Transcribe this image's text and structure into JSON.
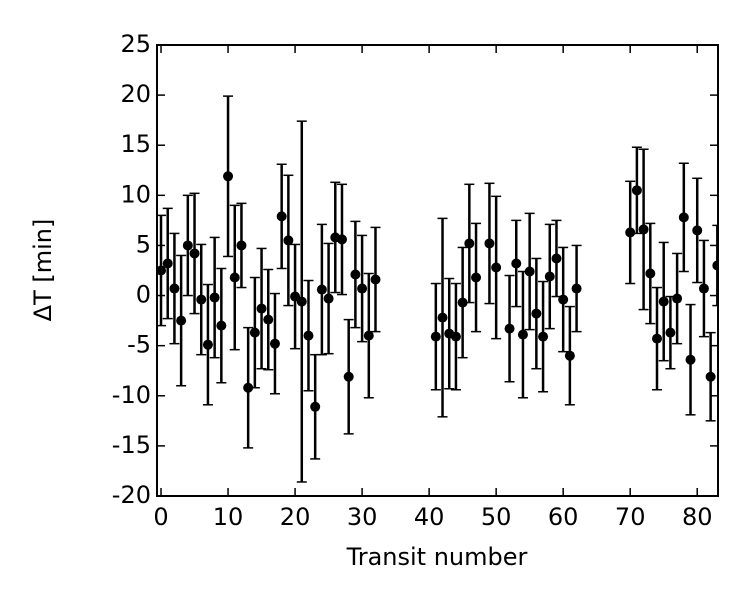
{
  "chart_data": {
    "type": "errorbar",
    "x_label": "Transit number",
    "y_label": "ΔT [min]",
    "x": [
      0,
      1,
      2,
      3,
      4,
      5,
      6,
      7,
      8,
      9,
      10,
      11,
      12,
      13,
      14,
      15,
      16,
      17,
      18,
      19,
      20,
      21,
      22,
      23,
      24,
      25,
      26,
      27,
      28,
      29,
      30,
      31,
      32,
      41,
      42,
      43,
      44,
      45,
      46,
      47,
      49,
      50,
      52,
      53,
      54,
      55,
      56,
      57,
      58,
      59,
      60,
      61,
      62,
      70,
      71,
      72,
      73,
      74,
      75,
      76,
      77,
      78,
      79,
      80,
      81,
      82,
      83
    ],
    "values": [
      2.5,
      3.2,
      0.7,
      -2.5,
      5.0,
      4.2,
      -0.4,
      -4.9,
      -0.2,
      -3.0,
      11.9,
      1.8,
      5.0,
      -9.2,
      -3.7,
      -1.3,
      -2.4,
      -4.8,
      7.9,
      5.5,
      -0.1,
      -0.6,
      -4.0,
      -11.1,
      0.6,
      -0.3,
      5.8,
      5.6,
      -8.1,
      2.1,
      0.7,
      -4.0,
      1.6,
      -4.1,
      -2.2,
      -3.8,
      -4.1,
      -0.7,
      5.2,
      1.8,
      5.2,
      2.8,
      -3.3,
      3.2,
      -3.9,
      2.4,
      -1.8,
      -4.1,
      1.9,
      3.7,
      -0.4,
      -6.0,
      0.7,
      6.3,
      10.5,
      6.6,
      2.2,
      -4.3,
      -0.6,
      -3.7,
      -0.3,
      7.8,
      -6.4,
      6.5,
      0.7,
      -8.1,
      3.0
    ],
    "errors": [
      5.5,
      5.5,
      5.5,
      6.5,
      5.0,
      6.0,
      5.5,
      6.0,
      6.0,
      5.7,
      8.0,
      7.2,
      4.2,
      6.0,
      5.5,
      6.0,
      5.0,
      5.0,
      5.2,
      6.5,
      5.2,
      18.0,
      5.5,
      5.2,
      6.5,
      5.5,
      5.5,
      5.5,
      5.7,
      5.3,
      5.3,
      6.2,
      5.2,
      5.3,
      9.9,
      5.5,
      5.3,
      5.5,
      5.9,
      5.4,
      6.0,
      7.1,
      5.3,
      4.3,
      6.3,
      5.8,
      5.5,
      5.5,
      5.2,
      3.8,
      5.2,
      4.9,
      4.3,
      5.1,
      4.3,
      8.0,
      5.0,
      5.1,
      5.9,
      3.6,
      4.5,
      5.4,
      5.5,
      5.2,
      4.8,
      4.4,
      4.0
    ],
    "color": "#000000",
    "xlim": [
      -0.6,
      83.1
    ],
    "ylim": [
      -20,
      25
    ],
    "xticks": [
      0,
      10,
      20,
      30,
      40,
      50,
      60,
      70,
      80
    ],
    "yticks": [
      -20,
      -15,
      -10,
      -5,
      0,
      5,
      10,
      15,
      20,
      25
    ]
  }
}
